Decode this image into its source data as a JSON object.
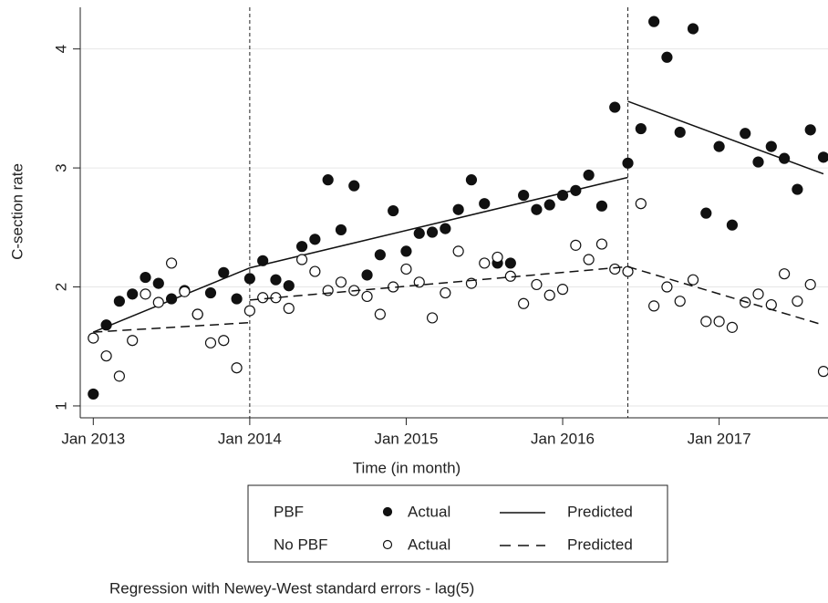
{
  "chart_data": {
    "type": "interrupted-time-series",
    "x_label": "Time (in month)",
    "y_label": "C-section rate",
    "note": "Regression with Newey-West standard errors - lag(5)",
    "xlim": [
      "2012-12",
      "2017-09"
    ],
    "xticks": [
      {
        "value": "2013-01",
        "label": "Jan 2013"
      },
      {
        "value": "2014-01",
        "label": "Jan 2014"
      },
      {
        "value": "2015-01",
        "label": "Jan 2015"
      },
      {
        "value": "2016-01",
        "label": "Jan 2016"
      },
      {
        "value": "2017-01",
        "label": "Jan 2017"
      }
    ],
    "ylim": [
      0.9,
      4.35
    ],
    "yticks": [
      1,
      2,
      3,
      4
    ],
    "grid": true,
    "interruptions": [
      "2014-01",
      "2016-06"
    ],
    "x": [
      "2013-01",
      "2013-02",
      "2013-03",
      "2013-04",
      "2013-05",
      "2013-06",
      "2013-07",
      "2013-08",
      "2013-09",
      "2013-10",
      "2013-11",
      "2013-12",
      "2014-01",
      "2014-02",
      "2014-03",
      "2014-04",
      "2014-05",
      "2014-06",
      "2014-07",
      "2014-08",
      "2014-09",
      "2014-10",
      "2014-11",
      "2014-12",
      "2015-01",
      "2015-02",
      "2015-03",
      "2015-04",
      "2015-05",
      "2015-06",
      "2015-07",
      "2015-08",
      "2015-09",
      "2015-10",
      "2015-11",
      "2015-12",
      "2016-01",
      "2016-02",
      "2016-03",
      "2016-04",
      "2016-05",
      "2016-06",
      "2016-07",
      "2016-08",
      "2016-09",
      "2016-10",
      "2016-11",
      "2016-12",
      "2017-01",
      "2017-02",
      "2017-03",
      "2017-04",
      "2017-05",
      "2017-06",
      "2017-07",
      "2017-08",
      "2017-09"
    ],
    "series": [
      {
        "group": "PBF",
        "name": "Actual",
        "kind": "scatter",
        "color": "#111111",
        "filled": true,
        "values": [
          1.1,
          1.68,
          1.88,
          1.94,
          2.08,
          2.03,
          1.9,
          1.97,
          1.77,
          1.95,
          2.12,
          1.9,
          2.07,
          2.22,
          2.06,
          2.01,
          2.34,
          2.4,
          2.9,
          2.48,
          2.85,
          2.1,
          2.27,
          2.64,
          2.3,
          2.45,
          2.46,
          2.49,
          2.65,
          2.9,
          2.7,
          2.2,
          2.2,
          2.77,
          2.65,
          2.69,
          2.77,
          2.81,
          2.94,
          2.68,
          3.51,
          3.04,
          3.33,
          4.23,
          3.93,
          3.3,
          4.17,
          2.62,
          3.18,
          2.52,
          3.29,
          3.05,
          3.18,
          3.08,
          2.82,
          3.32,
          3.09
        ]
      },
      {
        "group": "PBF",
        "name": "Predicted",
        "kind": "line",
        "color": "#111111",
        "dash": false,
        "x": [
          "2013-01",
          "2014-01",
          "2014-01",
          "2014-01",
          "2016-06",
          "2016-06",
          "2016-06",
          "2017-09"
        ],
        "values": [
          1.62,
          2.16,
          null,
          2.16,
          2.92,
          null,
          3.56,
          2.95
        ]
      },
      {
        "group": "No PBF",
        "name": "Actual",
        "kind": "scatter",
        "color": "#111111",
        "filled": false,
        "values": [
          1.57,
          1.42,
          1.25,
          1.55,
          1.94,
          1.87,
          2.2,
          1.96,
          1.77,
          1.53,
          1.55,
          1.32,
          1.8,
          1.91,
          1.91,
          1.82,
          2.23,
          2.13,
          1.97,
          2.04,
          1.97,
          1.92,
          1.77,
          2.0,
          2.15,
          2.04,
          1.74,
          1.95,
          2.3,
          2.03,
          2.2,
          2.25,
          2.09,
          1.86,
          2.02,
          1.93,
          1.98,
          2.35,
          2.23,
          2.36,
          2.15,
          2.13,
          2.7,
          1.84,
          2.0,
          1.88,
          2.06,
          1.71,
          1.71,
          1.66,
          1.87,
          1.94,
          1.85,
          2.11,
          1.88,
          2.02,
          1.29
        ]
      },
      {
        "group": "No PBF",
        "name": "Predicted",
        "kind": "line",
        "color": "#111111",
        "dash": true,
        "x": [
          "2013-01",
          "2014-01",
          "2014-01",
          "2014-01",
          "2016-06",
          "2016-06",
          "2016-06",
          "2017-09"
        ],
        "values": [
          1.62,
          1.7,
          null,
          1.89,
          2.17,
          null,
          2.17,
          1.68
        ]
      }
    ]
  }
}
